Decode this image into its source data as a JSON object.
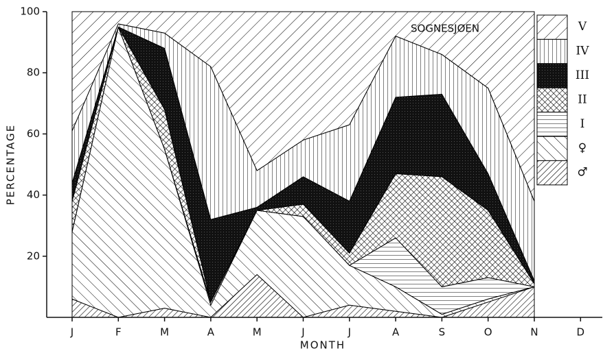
{
  "chart_data": {
    "type": "stacked-area",
    "annotation": "SOGNESJØEN",
    "x_label": "MONTH",
    "y_label": "PERCENTAGE",
    "categories": [
      "J",
      "F",
      "M",
      "A",
      "M",
      "J",
      "J",
      "A",
      "S",
      "O",
      "N",
      "D"
    ],
    "ylim": [
      0,
      100
    ],
    "yticks": [
      20,
      40,
      60,
      80,
      100
    ],
    "series": [
      {
        "name": "♂",
        "values": [
          6,
          0,
          3,
          0,
          14,
          0,
          4,
          2,
          0,
          5,
          10,
          null
        ]
      },
      {
        "name": "♀",
        "values": [
          22,
          95,
          52,
          4,
          21,
          33,
          13,
          8,
          1,
          1,
          0,
          null
        ]
      },
      {
        "name": "I",
        "values": [
          0,
          0,
          0,
          1,
          0,
          0,
          0,
          16,
          9,
          7,
          0,
          null
        ]
      },
      {
        "name": "II",
        "values": [
          10,
          0,
          13,
          0,
          0,
          4,
          4,
          21,
          36,
          22,
          1,
          null
        ]
      },
      {
        "name": "III",
        "values": [
          6,
          0,
          20,
          27,
          1,
          9,
          17,
          25,
          27,
          12,
          1,
          null
        ]
      },
      {
        "name": "IV",
        "values": [
          17,
          1,
          5,
          50,
          12,
          12,
          25,
          20,
          13,
          28,
          26,
          null
        ]
      },
      {
        "name": "V",
        "values": [
          39,
          4,
          7,
          18,
          52,
          42,
          37,
          8,
          14,
          25,
          62,
          null
        ]
      }
    ]
  }
}
